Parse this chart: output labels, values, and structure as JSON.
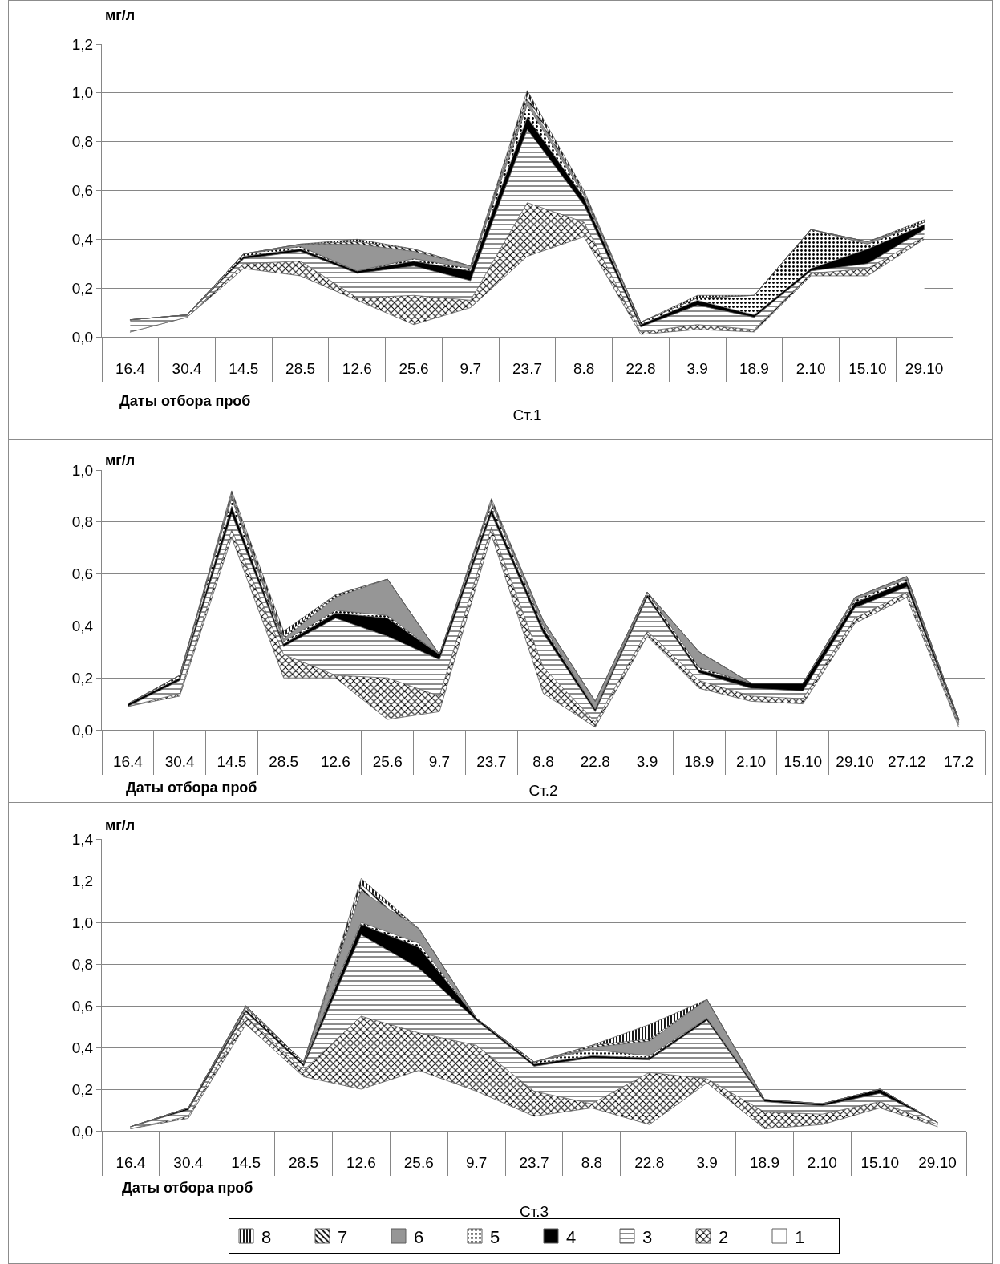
{
  "chart_data": [
    {
      "type": "area",
      "stacked": true,
      "title": "Ст.1",
      "xlabel": "Даты отбора проб",
      "ylabel": "мг/л",
      "categories": [
        "16.4",
        "30.4",
        "14.5",
        "28.5",
        "12.6",
        "25.6",
        "9.7",
        "23.7",
        "8.8",
        "22.8",
        "3.9",
        "18.9",
        "2.10",
        "15.10",
        "29.10"
      ],
      "series": [
        {
          "color": "#ffffff",
          "values": [
            0.02,
            0.08,
            0.28,
            0.25,
            0.15,
            0.05,
            0.12,
            0.33,
            0.41,
            0.01,
            0.03,
            0.02,
            0.25,
            0.25,
            0.4
          ]
        },
        {
          "color": "#000000",
          "values": [
            0,
            0,
            0.02,
            0.06,
            0.01,
            0.12,
            0.03,
            0.22,
            0.06,
            0.01,
            0.02,
            0.01,
            0.01,
            0.03,
            0.01
          ]
        },
        {
          "color": "#000000",
          "values": [
            0.05,
            0.01,
            0.02,
            0.04,
            0.1,
            0.12,
            0.08,
            0.3,
            0.07,
            0.02,
            0.08,
            0.05,
            0.01,
            0.02,
            0.03
          ]
        },
        {
          "color": "#000000",
          "values": [
            0,
            0,
            0.01,
            0.01,
            0.01,
            0.02,
            0.04,
            0.05,
            0.03,
            0.01,
            0.02,
            0.01,
            0.01,
            0.06,
            0.02
          ]
        },
        {
          "color": "#000000",
          "values": [
            0,
            0,
            0.01,
            0.01,
            0,
            0.01,
            0.01,
            0.05,
            0.01,
            0.01,
            0.01,
            0.08,
            0.16,
            0.02,
            0.01
          ]
        },
        {
          "color": "#969696",
          "values": [
            0,
            0,
            0,
            0.01,
            0.11,
            0.03,
            0.01,
            0.02,
            0.01,
            0,
            0,
            0,
            0,
            0.01,
            0
          ]
        },
        {
          "color": "#000000",
          "values": [
            0,
            0,
            0,
            0,
            0.01,
            0.01,
            0,
            0.02,
            0,
            0,
            0,
            0,
            0,
            0,
            0
          ]
        },
        {
          "color": "#000000",
          "values": [
            0,
            0,
            0,
            0,
            0.01,
            0,
            0,
            0.02,
            0.01,
            0,
            0.01,
            0,
            0,
            0,
            0.01
          ]
        }
      ],
      "ylim": [
        0,
        1.2
      ],
      "yticks": [
        {
          "value": 0,
          "label": "0,0"
        },
        {
          "value": 0.2,
          "label": "0,2"
        },
        {
          "value": 0.4,
          "label": "0,4"
        },
        {
          "value": 0.6,
          "label": "0,6"
        },
        {
          "value": 0.8,
          "label": "0,8"
        },
        {
          "value": 1.0,
          "label": "1,0"
        },
        {
          "value": 1.2,
          "label": "1,2"
        }
      ],
      "grid": "y"
    },
    {
      "type": "area",
      "stacked": true,
      "title": "Ст.2",
      "xlabel": "Даты отбора проб",
      "ylabel": "мг/л",
      "categories": [
        "16.4",
        "30.4",
        "14.5",
        "28.5",
        "12.6",
        "25.6",
        "9.7",
        "23.7",
        "8.8",
        "22.8",
        "3.9",
        "18.9",
        "2.10",
        "15.10",
        "29.10",
        "27.12",
        "17.2"
      ],
      "series": [
        {
          "color": "#ffffff",
          "values": [
            0.09,
            0.13,
            0.74,
            0.2,
            0.2,
            0.04,
            0.07,
            0.75,
            0.14,
            0.01,
            0.36,
            0.16,
            0.11,
            0.1,
            0.41,
            0.51,
            0.01
          ]
        },
        {
          "color": "#000000",
          "values": [
            0,
            0.01,
            0.03,
            0.09,
            0.01,
            0.16,
            0.06,
            0.03,
            0.1,
            0.02,
            0.02,
            0.03,
            0.02,
            0.02,
            0.02,
            0.02,
            0.01
          ]
        },
        {
          "color": "#000000",
          "values": [
            0,
            0.05,
            0.06,
            0.03,
            0.22,
            0.16,
            0.14,
            0.05,
            0.13,
            0.04,
            0.13,
            0.03,
            0.03,
            0.03,
            0.04,
            0.02,
            0.01
          ]
        },
        {
          "color": "#000000",
          "values": [
            0.01,
            0.01,
            0.03,
            0.01,
            0.02,
            0.07,
            0.02,
            0.02,
            0.02,
            0.01,
            0.01,
            0.01,
            0.02,
            0.03,
            0.02,
            0.02,
            0.01
          ]
        },
        {
          "color": "#000000",
          "values": [
            0,
            0.01,
            0.03,
            0.01,
            0.01,
            0.01,
            0,
            0.02,
            0.01,
            0,
            0.01,
            0.01,
            0,
            0,
            0.01,
            0.01,
            0
          ]
        },
        {
          "color": "#969696",
          "values": [
            0,
            0,
            0.01,
            0.01,
            0.05,
            0.14,
            0,
            0.01,
            0.02,
            0.03,
            0,
            0.06,
            0,
            0,
            0.01,
            0.01,
            0
          ]
        },
        {
          "color": "#000000",
          "values": [
            0,
            0,
            0.01,
            0.01,
            0.01,
            0,
            0,
            0,
            0,
            0,
            0,
            0,
            0,
            0,
            0,
            0,
            0
          ]
        },
        {
          "color": "#000000",
          "values": [
            0,
            0,
            0.01,
            0.02,
            0,
            0,
            0,
            0.01,
            0,
            0,
            0,
            0,
            0,
            0,
            0,
            0,
            0
          ]
        }
      ],
      "ylim": [
        0,
        1.0
      ],
      "yticks": [
        {
          "value": 0,
          "label": "0,0"
        },
        {
          "value": 0.2,
          "label": "0,2"
        },
        {
          "value": 0.4,
          "label": "0,4"
        },
        {
          "value": 0.6,
          "label": "0,6"
        },
        {
          "value": 0.8,
          "label": "0,8"
        },
        {
          "value": 1.0,
          "label": "1,0"
        }
      ],
      "grid": "y"
    },
    {
      "type": "area",
      "stacked": true,
      "title": "Ст.3",
      "xlabel": "Даты отбора проб",
      "ylabel": "мг/л",
      "categories": [
        "16.4",
        "30.4",
        "14.5",
        "28.5",
        "12.6",
        "25.6",
        "9.7",
        "23.7",
        "8.8",
        "22.8",
        "3.9",
        "18.9",
        "2.10",
        "15.10",
        "29.10"
      ],
      "series": [
        {
          "name": "1",
          "color": "#ffffff",
          "values": [
            0.01,
            0.06,
            0.51,
            0.26,
            0.2,
            0.29,
            0.19,
            0.07,
            0.11,
            0.03,
            0.23,
            0.01,
            0.03,
            0.11,
            0.02
          ]
        },
        {
          "name": "2",
          "color": "#000000",
          "values": [
            0,
            0.01,
            0.04,
            0.03,
            0.35,
            0.18,
            0.22,
            0.12,
            0.02,
            0.25,
            0.02,
            0.08,
            0.05,
            0.03,
            0.01
          ]
        },
        {
          "name": "3",
          "color": "#000000",
          "values": [
            0.01,
            0.03,
            0.02,
            0.02,
            0.39,
            0.31,
            0.12,
            0.12,
            0.22,
            0.06,
            0.28,
            0.05,
            0.04,
            0.04,
            0.01
          ]
        },
        {
          "name": "4",
          "color": "#000000",
          "values": [
            0,
            0.01,
            0.01,
            0.01,
            0.05,
            0.1,
            0.01,
            0.01,
            0.01,
            0.01,
            0.01,
            0.01,
            0.01,
            0.02,
            0
          ]
        },
        {
          "name": "5",
          "color": "#000000",
          "values": [
            0,
            0,
            0.01,
            0.01,
            0.01,
            0.02,
            0,
            0.01,
            0.03,
            0.01,
            0,
            0,
            0,
            0,
            0
          ]
        },
        {
          "name": "6",
          "color": "#969696",
          "values": [
            0,
            0,
            0.01,
            0,
            0.15,
            0.07,
            0,
            0,
            0.01,
            0.07,
            0.09,
            0,
            0,
            0,
            0
          ]
        },
        {
          "name": "7",
          "color": "#000000",
          "values": [
            0,
            0,
            0,
            0,
            0.03,
            0,
            0,
            0,
            0.01,
            0.01,
            0,
            0,
            0,
            0,
            0
          ]
        },
        {
          "name": "8",
          "color": "#000000",
          "values": [
            0,
            0,
            0,
            0,
            0.03,
            0,
            0,
            0,
            0,
            0.07,
            0,
            0,
            0,
            0,
            0
          ]
        }
      ],
      "ylim": [
        0,
        1.4
      ],
      "yticks": [
        {
          "value": 0,
          "label": "0,0"
        },
        {
          "value": 0.2,
          "label": "0,2"
        },
        {
          "value": 0.4,
          "label": "0,4"
        },
        {
          "value": 0.6,
          "label": "0,6"
        },
        {
          "value": 0.8,
          "label": "0,8"
        },
        {
          "value": 1.0,
          "label": "1,0"
        },
        {
          "value": 1.2,
          "label": "1,2"
        },
        {
          "value": 1.4,
          "label": "1,4"
        }
      ],
      "grid": "y",
      "legend": "bottom"
    }
  ]
}
